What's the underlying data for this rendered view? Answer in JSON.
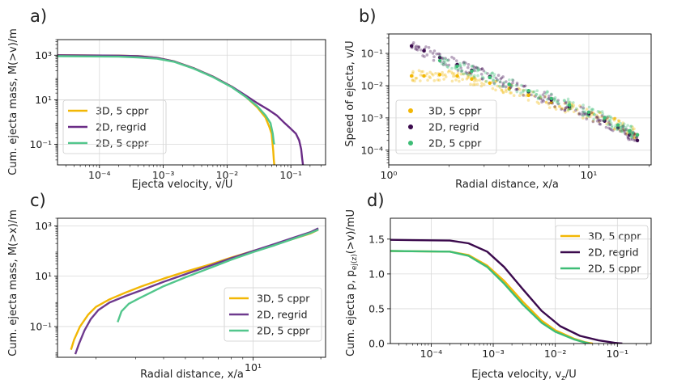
{
  "panel_labels": [
    "a)",
    "b)",
    "c)",
    "d)"
  ],
  "colors": {
    "3d_5cppr": "#f2b705",
    "2d_regrid_a": "#6a2c86",
    "2d_regrid_b": "#3b0a4d",
    "2d_regrid_c": "#6e3a8e",
    "2d_5cppr": "#3dbd76",
    "2d_5cppr_a": "#52c68c"
  },
  "chart_data": [
    {
      "panel": "a)",
      "type": "line",
      "xlabel": "Ejecta velocity, v/U",
      "ylabel": "Cum. ejecta mass, M(>v)/m",
      "xscale": "log",
      "yscale": "log",
      "xlim": [
        2.2e-05,
        0.35
      ],
      "ylim": [
        0.012,
        5000
      ],
      "xticks": [
        {
          "v": 0.0001,
          "label": "10⁻⁴"
        },
        {
          "v": 0.001,
          "label": "10⁻³"
        },
        {
          "v": 0.01,
          "label": "10⁻²"
        },
        {
          "v": 0.1,
          "label": "10⁻¹"
        }
      ],
      "yticks": [
        {
          "v": 0.1,
          "label": "10⁻¹"
        },
        {
          "v": 10,
          "label": "10¹"
        },
        {
          "v": 1000,
          "label": "10³"
        }
      ],
      "legend_position": "lower-left",
      "series": [
        {
          "name": "3D, 5 cppr",
          "color_key": "3d_5cppr",
          "x": [
            2.2e-05,
            0.0002,
            0.0004,
            0.0008,
            0.0015,
            0.003,
            0.006,
            0.012,
            0.02,
            0.03,
            0.04,
            0.046,
            0.05,
            0.053,
            0.054,
            0.055,
            0.0555
          ],
          "y": [
            1000,
            960,
            900,
            760,
            520,
            260,
            110,
            38,
            13,
            4.5,
            1.6,
            0.6,
            0.3,
            0.05,
            0.02,
            0.012,
            0.012
          ]
        },
        {
          "name": "2D, regrid",
          "color_key": "2d_regrid_a",
          "x": [
            2.2e-05,
            0.0002,
            0.0004,
            0.0008,
            0.0015,
            0.003,
            0.006,
            0.012,
            0.02,
            0.03,
            0.045,
            0.06,
            0.08,
            0.1,
            0.12,
            0.135,
            0.145,
            0.15,
            0.155
          ],
          "y": [
            1000,
            960,
            900,
            760,
            520,
            260,
            110,
            38,
            15,
            7,
            3.5,
            2.0,
            0.9,
            0.5,
            0.3,
            0.15,
            0.06,
            0.025,
            0.012
          ]
        },
        {
          "name": "2D, 5 cppr",
          "color_key": "2d_5cppr_a",
          "x": [
            2.2e-05,
            0.0002,
            0.0004,
            0.0008,
            0.0015,
            0.003,
            0.006,
            0.012,
            0.02,
            0.03,
            0.04,
            0.048,
            0.052,
            0.054,
            0.055
          ],
          "y": [
            900,
            860,
            800,
            700,
            500,
            250,
            105,
            36,
            13,
            5,
            2,
            0.9,
            0.3,
            0.12,
            0.1
          ]
        }
      ]
    },
    {
      "panel": "b)",
      "type": "scatter",
      "xlabel": "Radial distance, x/a",
      "ylabel": "Speed of ejecta, v/U",
      "xscale": "log",
      "yscale": "log",
      "xlim": [
        1,
        20.5
      ],
      "ylim": [
        3.5e-05,
        0.4
      ],
      "xticks": [
        {
          "v": 1,
          "label": "10⁰"
        },
        {
          "v": 10,
          "label": "10¹"
        }
      ],
      "yticks": [
        {
          "v": 0.0001,
          "label": "10⁻⁴"
        },
        {
          "v": 0.001,
          "label": "10⁻³"
        },
        {
          "v": 0.01,
          "label": "10⁻²"
        },
        {
          "v": 0.1,
          "label": "10⁻¹"
        }
      ],
      "legend_position": "lower-left",
      "series": [
        {
          "name": "3D, 5 cppr",
          "color_key": "3d_5cppr",
          "x": [
            1.3,
            1.5,
            1.8,
            2.2,
            2.6,
            3.2,
            4,
            5,
            6.5,
            8,
            10,
            12,
            14,
            16,
            17.5
          ],
          "y": [
            0.02,
            0.02,
            0.022,
            0.02,
            0.016,
            0.012,
            0.008,
            0.005,
            0.003,
            0.002,
            0.0013,
            0.0009,
            0.0006,
            0.0004,
            0.0003
          ]
        },
        {
          "name": "2D, regrid",
          "color_key": "2d_regrid_b",
          "x": [
            1.3,
            1.5,
            1.8,
            2.2,
            2.6,
            3.2,
            4,
            5,
            6.5,
            8,
            10,
            12,
            14,
            16,
            17.5
          ],
          "y": [
            0.17,
            0.12,
            0.075,
            0.045,
            0.03,
            0.019,
            0.011,
            0.0065,
            0.0036,
            0.0022,
            0.0013,
            0.0008,
            0.0005,
            0.0003,
            0.0002
          ]
        },
        {
          "name": "2D, 5 cppr",
          "color_key": "2d_5cppr",
          "x": [
            1.8,
            2.2,
            2.6,
            3.2,
            4,
            5,
            6.5,
            8,
            10,
            12,
            14,
            16,
            17.5
          ],
          "y": [
            0.06,
            0.04,
            0.028,
            0.018,
            0.011,
            0.007,
            0.004,
            0.0025,
            0.0015,
            0.001,
            0.0006,
            0.0004,
            0.0003
          ]
        }
      ]
    },
    {
      "panel": "c)",
      "type": "line",
      "xlabel": "Radial distance, x/a",
      "ylabel": "Cum. ejecta mass, M(>x)/m",
      "xscale": "log",
      "yscale": "log",
      "xlim": [
        1.35,
        21
      ],
      "ylim": [
        0.006,
        2000
      ],
      "xticks": [
        {
          "v": 10,
          "label": "10¹"
        }
      ],
      "yticks": [
        {
          "v": 0.1,
          "label": "10⁻¹"
        },
        {
          "v": 10,
          "label": "10¹"
        },
        {
          "v": 1000,
          "label": "10³"
        }
      ],
      "legend_position": "lower-right",
      "series": [
        {
          "name": "3D, 5 cppr",
          "color_key": "3d_5cppr",
          "x": [
            1.55,
            1.6,
            1.7,
            1.85,
            2.0,
            2.3,
            2.7,
            3.2,
            4,
            5,
            6.5,
            8,
            10,
            12.5,
            15,
            18,
            19.5
          ],
          "y": [
            0.012,
            0.03,
            0.1,
            0.3,
            0.6,
            1.2,
            2.2,
            4,
            8,
            15,
            30,
            55,
            100,
            180,
            300,
            500,
            700
          ]
        },
        {
          "name": "2D, regrid",
          "color_key": "2d_regrid_c",
          "x": [
            1.62,
            1.68,
            1.78,
            1.9,
            2.05,
            2.3,
            2.7,
            3.2,
            4,
            5,
            6.5,
            8,
            10,
            12.5,
            15,
            18,
            19.5
          ],
          "y": [
            0.008,
            0.02,
            0.07,
            0.2,
            0.45,
            0.9,
            1.6,
            2.8,
            6,
            12,
            27,
            52,
            100,
            190,
            330,
            560,
            800
          ]
        },
        {
          "name": "2D, 5 cppr",
          "color_key": "2d_5cppr_a",
          "x": [
            2.5,
            2.6,
            2.8,
            3.1,
            3.5,
            4,
            5,
            6.5,
            8,
            10,
            12.5,
            15,
            18,
            19.5
          ],
          "y": [
            0.15,
            0.4,
            0.8,
            1.3,
            2.2,
            4,
            9,
            22,
            45,
            90,
            170,
            300,
            520,
            700
          ]
        }
      ]
    },
    {
      "panel": "d)",
      "type": "line",
      "xlabel": "Ejecta velocity, v₂/U",
      "ylabel": "Cum. ejecta p, pₑ/(₂)(>v)/mU",
      "xscale": "log",
      "yscale": "linear",
      "xlim": [
        2.2e-05,
        0.35
      ],
      "ylim": [
        0,
        1.8
      ],
      "xticks": [
        {
          "v": 0.0001,
          "label": "10⁻⁴"
        },
        {
          "v": 0.001,
          "label": "10⁻³"
        },
        {
          "v": 0.01,
          "label": "10⁻²"
        },
        {
          "v": 0.1,
          "label": "10⁻¹"
        }
      ],
      "yticks": [
        {
          "v": 0,
          "label": "0.0"
        },
        {
          "v": 0.5,
          "label": "0.5"
        },
        {
          "v": 1.0,
          "label": "1.0"
        },
        {
          "v": 1.5,
          "label": "1.5"
        }
      ],
      "legend_position": "top-right",
      "series": [
        {
          "name": "3D, 5 cppr",
          "color_key": "3d_5cppr",
          "x": [
            2.2e-05,
            0.0002,
            0.0004,
            0.0008,
            0.0015,
            0.003,
            0.006,
            0.01,
            0.02,
            0.03,
            0.04
          ],
          "y": [
            1.33,
            1.32,
            1.27,
            1.12,
            0.9,
            0.6,
            0.33,
            0.19,
            0.07,
            0.02,
            0.0
          ]
        },
        {
          "name": "2D, regrid",
          "color_key": "2d_regrid_b",
          "x": [
            2.2e-05,
            0.0002,
            0.0004,
            0.0008,
            0.0015,
            0.003,
            0.006,
            0.012,
            0.025,
            0.05,
            0.09,
            0.12
          ],
          "y": [
            1.49,
            1.48,
            1.44,
            1.32,
            1.1,
            0.78,
            0.47,
            0.25,
            0.11,
            0.045,
            0.01,
            0.0
          ]
        },
        {
          "name": "2D, 5 cppr",
          "color_key": "2d_5cppr",
          "x": [
            2.2e-05,
            0.0002,
            0.0004,
            0.0008,
            0.0015,
            0.003,
            0.006,
            0.01,
            0.02,
            0.03,
            0.036
          ],
          "y": [
            1.33,
            1.32,
            1.26,
            1.1,
            0.86,
            0.56,
            0.3,
            0.17,
            0.06,
            0.015,
            0.0
          ]
        }
      ]
    }
  ]
}
